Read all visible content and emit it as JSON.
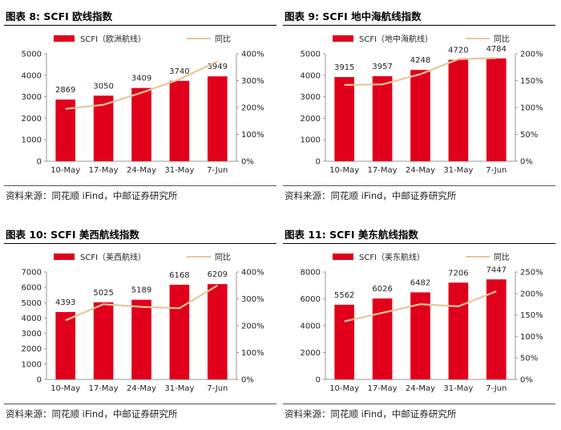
{
  "colors": {
    "bar": "#e0001b",
    "line": "#e8c79a",
    "axis": "#999999",
    "text": "#222222"
  },
  "chart_data": [
    {
      "type": "bar",
      "title": "图表 8: SCFI 欧线指数",
      "source": "资料来源：同花顺 iFind，中邮证券研究所",
      "categories": [
        "10-May",
        "17-May",
        "24-May",
        "31-May",
        "7-Jun"
      ],
      "series": [
        {
          "name": "SCFI（欧洲航线）",
          "kind": "bar",
          "axis": "left",
          "values": [
            2869,
            3050,
            3409,
            3740,
            3949
          ]
        },
        {
          "name": "同比",
          "kind": "line",
          "axis": "right",
          "values": [
            195,
            210,
            255,
            305,
            372
          ]
        }
      ],
      "y_left": {
        "ticks": [
          "5000",
          "4000",
          "3000",
          "2000",
          "1000",
          "0"
        ],
        "ylim": [
          0,
          5000
        ]
      },
      "y_right": {
        "ticks": [
          "400%",
          "300%",
          "200%",
          "100%",
          "0%"
        ],
        "ylim": [
          0,
          400
        ]
      }
    },
    {
      "type": "bar",
      "title": "图表 9: SCFI 地中海航线指数",
      "source": "资料来源：同花顺 iFind，中邮证券研究所",
      "categories": [
        "10-May",
        "17-May",
        "24-May",
        "31-May",
        "7-Jun"
      ],
      "series": [
        {
          "name": "SCFI（地中海航线）",
          "kind": "bar",
          "axis": "left",
          "values": [
            3915,
            3957,
            4248,
            4720,
            4784
          ]
        },
        {
          "name": "同比",
          "kind": "line",
          "axis": "right",
          "values": [
            142,
            143,
            162,
            190,
            192
          ]
        }
      ],
      "y_left": {
        "ticks": [
          "5000",
          "4000",
          "3000",
          "2000",
          "1000",
          "0"
        ],
        "ylim": [
          0,
          5000
        ]
      },
      "y_right": {
        "ticks": [
          "200%",
          "150%",
          "100%",
          "50%",
          "0%"
        ],
        "ylim": [
          0,
          200
        ]
      }
    },
    {
      "type": "bar",
      "title": "图表 10: SCFI 美西航线指数",
      "source": "资料来源：同花顺 iFind，中邮证券研究所",
      "categories": [
        "10-May",
        "17-May",
        "24-May",
        "31-May",
        "7-Jun"
      ],
      "series": [
        {
          "name": "SCFI（美西航线）",
          "kind": "bar",
          "axis": "left",
          "values": [
            4393,
            5025,
            5189,
            6168,
            6209
          ]
        },
        {
          "name": "同比",
          "kind": "line",
          "axis": "right",
          "values": [
            220,
            280,
            270,
            265,
            350
          ]
        }
      ],
      "y_left": {
        "ticks": [
          "7000",
          "6000",
          "5000",
          "4000",
          "3000",
          "2000",
          "1000",
          "0"
        ],
        "ylim": [
          0,
          7000
        ]
      },
      "y_right": {
        "ticks": [
          "400%",
          "300%",
          "200%",
          "100%",
          "0%"
        ],
        "ylim": [
          0,
          400
        ]
      }
    },
    {
      "type": "bar",
      "title": "图表 11: SCFI 美东航线指数",
      "source": "资料来源：同花顺 iFind，中邮证券研究所",
      "categories": [
        "10-May",
        "17-May",
        "24-May",
        "31-May",
        "7-Jun"
      ],
      "series": [
        {
          "name": "SCFI（美东航线）",
          "kind": "bar",
          "axis": "left",
          "values": [
            5562,
            6026,
            6482,
            7206,
            7447
          ]
        },
        {
          "name": "同比",
          "kind": "line",
          "axis": "right",
          "values": [
            135,
            155,
            175,
            170,
            205
          ]
        }
      ],
      "y_left": {
        "ticks": [
          "8000",
          "6000",
          "4000",
          "2000",
          "0"
        ],
        "ylim": [
          0,
          8000
        ]
      },
      "y_right": {
        "ticks": [
          "250%",
          "200%",
          "150%",
          "100%",
          "50%",
          "0%"
        ],
        "ylim": [
          0,
          250
        ]
      }
    }
  ]
}
